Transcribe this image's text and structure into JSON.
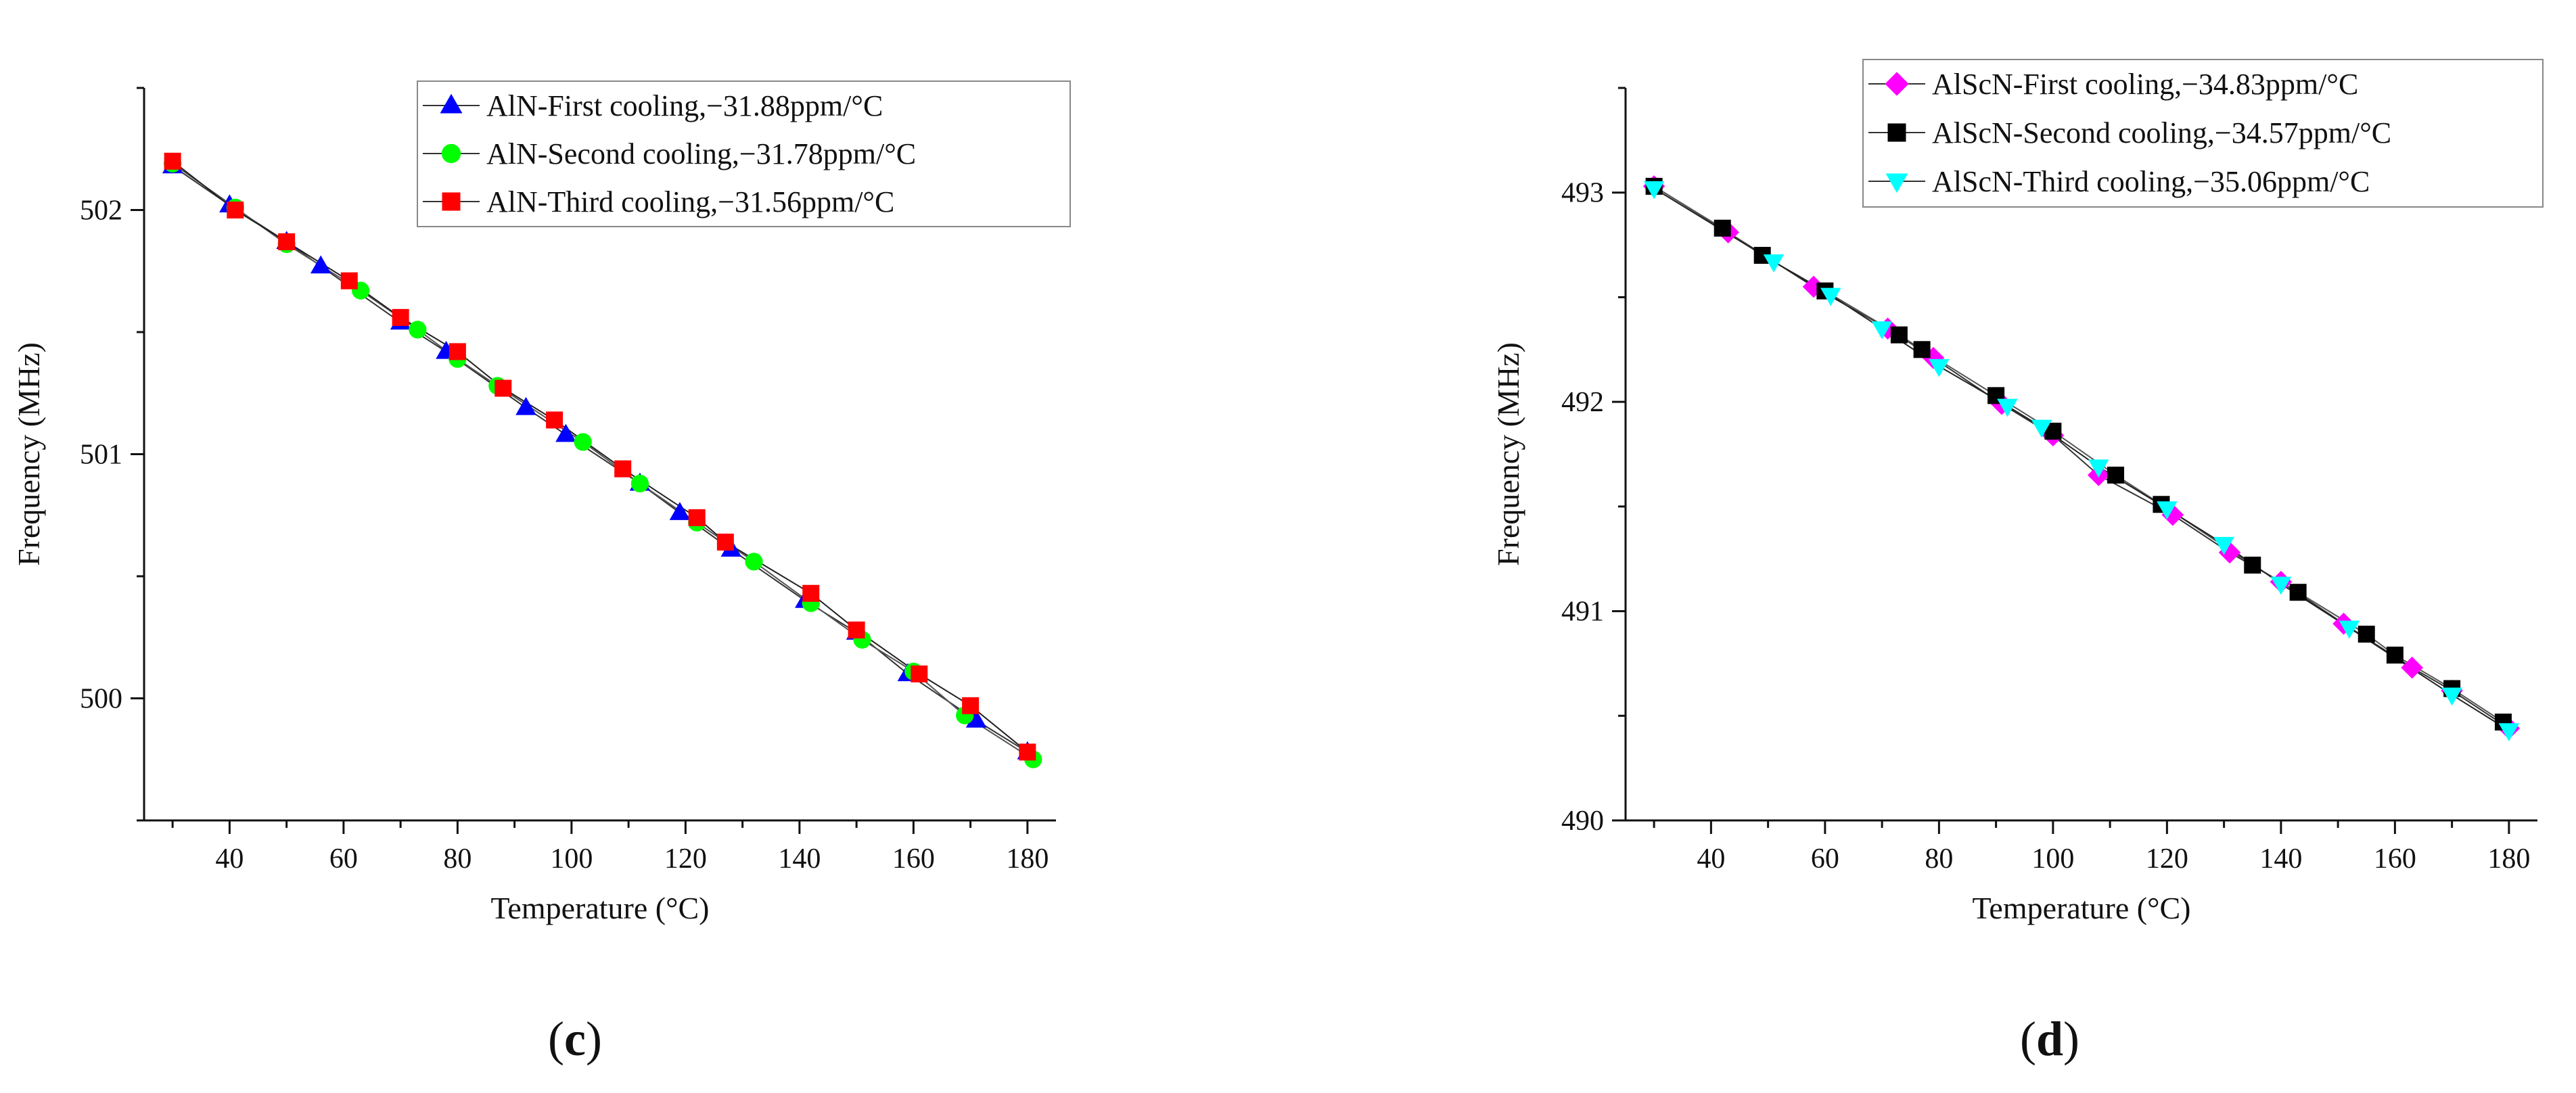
{
  "chart_data": [
    {
      "type": "line",
      "panel_label": "(c)",
      "xlabel": "Temperature (°C)",
      "ylabel": "Frequency (MHz)",
      "xlim": [
        25,
        185
      ],
      "ylim": [
        499.5,
        502.5
      ],
      "xticks": [
        40,
        60,
        80,
        100,
        120,
        140,
        160,
        180
      ],
      "yticks": [
        500,
        501,
        502
      ],
      "grid": false,
      "legend_position": "top-right",
      "series": [
        {
          "name": "AlN-First cooling,−31.88ppm/°C",
          "color": "#0000ff",
          "marker": "triangle-up",
          "x": [
            30,
            40,
            50,
            56,
            70,
            78,
            92,
            99,
            112,
            119,
            128,
            141,
            150,
            159,
            171,
            180
          ],
          "y": [
            502.18,
            502.02,
            501.87,
            501.77,
            501.54,
            501.42,
            501.19,
            501.08,
            500.88,
            500.76,
            500.61,
            500.4,
            500.27,
            500.1,
            499.91,
            499.78
          ]
        },
        {
          "name": "AlN-Second cooling,−31.78ppm/°C",
          "color": "#00ff00",
          "marker": "circle",
          "x": [
            30,
            41,
            50,
            63,
            73,
            80,
            87,
            102,
            112,
            122,
            132,
            142,
            151,
            160,
            169,
            181
          ],
          "y": [
            502.19,
            502.01,
            501.86,
            501.67,
            501.51,
            501.39,
            501.28,
            501.05,
            500.88,
            500.72,
            500.56,
            500.39,
            500.24,
            500.11,
            499.93,
            499.75
          ]
        },
        {
          "name": "AlN-Third cooling,−31.56ppm/°C",
          "color": "#ff0000",
          "marker": "square",
          "x": [
            30,
            41,
            50,
            61,
            70,
            80,
            88,
            97,
            109,
            122,
            127,
            142,
            150,
            161,
            170,
            180
          ],
          "y": [
            502.2,
            502.0,
            501.87,
            501.71,
            501.56,
            501.42,
            501.27,
            501.14,
            500.94,
            500.74,
            500.64,
            500.43,
            500.28,
            500.1,
            499.97,
            499.78
          ]
        }
      ]
    },
    {
      "type": "line",
      "panel_label": "(d)",
      "xlabel": "Temperature (°C)",
      "ylabel": "Frequency (MHz)",
      "xlim": [
        25,
        185
      ],
      "ylim": [
        490,
        493.5
      ],
      "xticks": [
        40,
        60,
        80,
        100,
        120,
        140,
        160,
        180
      ],
      "yticks": [
        490,
        491,
        492,
        493
      ],
      "grid": false,
      "legend_position": "top-right",
      "series": [
        {
          "name": "AlScN-First cooling,−34.83ppm/°C",
          "color": "#ff00ff",
          "marker": "diamond",
          "x": [
            30,
            43,
            58,
            71,
            79,
            91,
            100,
            108,
            121,
            131,
            140,
            151,
            163,
            170,
            180
          ],
          "y": [
            493.03,
            492.81,
            492.55,
            492.35,
            492.21,
            491.99,
            491.84,
            491.65,
            491.46,
            491.28,
            491.14,
            490.94,
            490.73,
            490.62,
            490.44
          ]
        },
        {
          "name": "AlScN-Second cooling,−34.57ppm/°C",
          "color": "#000000",
          "marker": "square",
          "x": [
            30,
            42,
            49,
            60,
            73,
            77,
            90,
            100,
            111,
            119,
            135,
            143,
            155,
            160,
            170,
            179
          ],
          "y": [
            493.03,
            492.83,
            492.7,
            492.53,
            492.32,
            492.25,
            492.03,
            491.86,
            491.65,
            491.51,
            491.22,
            491.09,
            490.89,
            490.79,
            490.63,
            490.47
          ]
        },
        {
          "name": "AlScN-Third cooling,−35.06ppm/°C",
          "color": "#00ffff",
          "marker": "triangle-down",
          "x": [
            30,
            51,
            61,
            70,
            80,
            92,
            98,
            108,
            120,
            130,
            140,
            152,
            170,
            180
          ],
          "y": [
            493.02,
            492.67,
            492.51,
            492.35,
            492.17,
            491.98,
            491.88,
            491.69,
            491.49,
            491.32,
            491.13,
            490.92,
            490.6,
            490.43
          ]
        }
      ]
    }
  ]
}
